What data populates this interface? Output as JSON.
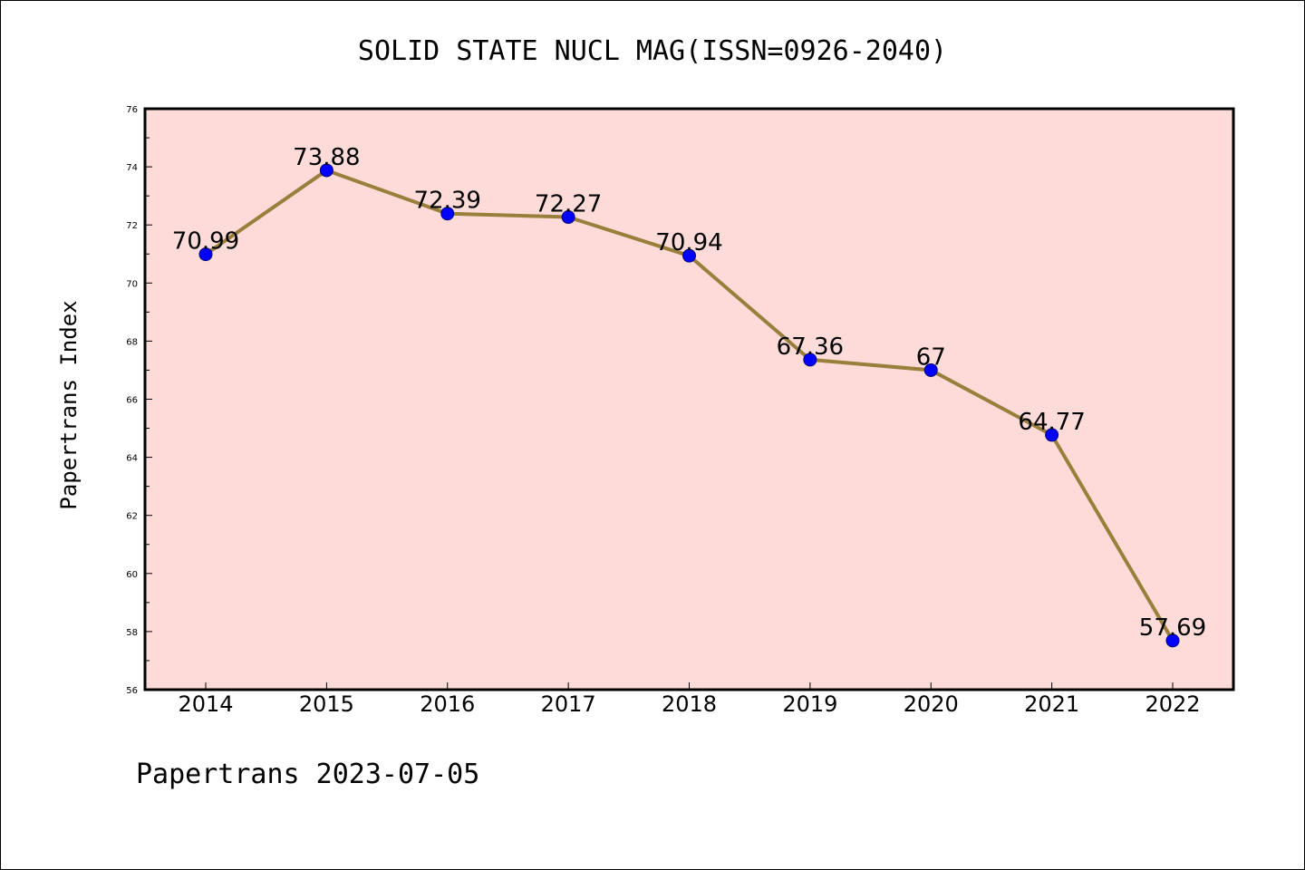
{
  "chart_data": {
    "type": "line",
    "title": "SOLID STATE NUCL MAG(ISSN=0926-2040)",
    "ylabel": "Papertrans Index",
    "xlabel": "",
    "footer": "Papertrans 2023-07-05",
    "categories": [
      "2014",
      "2015",
      "2016",
      "2017",
      "2018",
      "2019",
      "2020",
      "2021",
      "2022"
    ],
    "values": [
      70.99,
      73.88,
      72.39,
      72.27,
      70.94,
      67.36,
      67,
      64.77,
      57.69
    ],
    "data_labels": [
      "70.99",
      "73.88",
      "72.39",
      "72.27",
      "70.94",
      "67.36",
      "67",
      "64.77",
      "57.69"
    ],
    "ylim": [
      56,
      76
    ],
    "yticks": [
      56,
      58,
      60,
      62,
      64,
      66,
      68,
      70,
      72,
      74,
      76
    ],
    "ytick_labels": [
      "56",
      "58",
      "60",
      "62",
      "64",
      "66",
      "68",
      "70",
      "72",
      "74",
      "76"
    ],
    "grid": false,
    "legend": "none",
    "colors": {
      "plot_background": "#fddbd8",
      "line": "#9a7f3c",
      "marker_fill": "#0000ff",
      "marker_stroke": "#000080",
      "axes": "#000000"
    }
  }
}
